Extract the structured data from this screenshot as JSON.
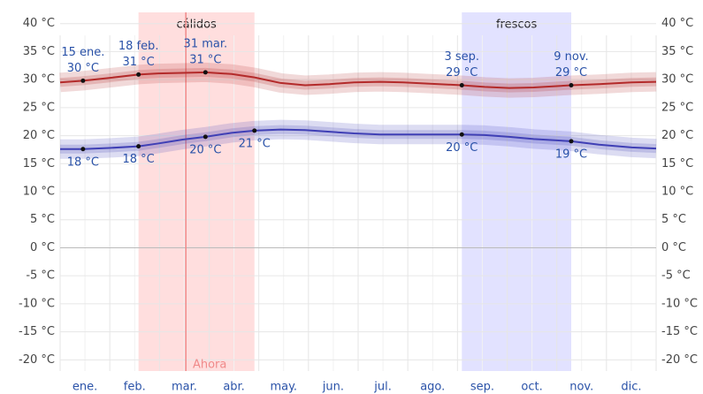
{
  "chart_data": {
    "type": "line",
    "months": [
      "ene.",
      "feb.",
      "mar.",
      "abr.",
      "may.",
      "jun.",
      "jul.",
      "ago.",
      "sep.",
      "oct.",
      "nov.",
      "dic."
    ],
    "xlim": [
      0,
      365
    ],
    "x": [
      0,
      14,
      30,
      48,
      60,
      75,
      89,
      105,
      119,
      135,
      150,
      165,
      180,
      196,
      210,
      225,
      246,
      260,
      275,
      290,
      313,
      330,
      350,
      365
    ],
    "date_labels": [
      null,
      "15 ene.",
      null,
      "18 feb.",
      null,
      null,
      "31 mar.",
      null,
      null,
      null,
      null,
      null,
      null,
      null,
      null,
      null,
      "3 sep.",
      null,
      null,
      null,
      "9 nov.",
      null,
      null,
      null
    ],
    "series": [
      {
        "name": "high",
        "color": "#b32a2a",
        "values": [
          29.5,
          29.8,
          30.3,
          30.9,
          31.1,
          31.2,
          31.3,
          31.0,
          30.4,
          29.4,
          29.0,
          29.2,
          29.5,
          29.6,
          29.5,
          29.3,
          29.0,
          28.7,
          28.5,
          28.6,
          29.0,
          29.2,
          29.5,
          29.6
        ],
        "value_labels": [
          null,
          "30 °C",
          null,
          "31 °C",
          null,
          null,
          "31 °C",
          null,
          null,
          null,
          null,
          null,
          null,
          null,
          null,
          null,
          "29 °C",
          null,
          null,
          null,
          "29 °C",
          null,
          null,
          null
        ]
      },
      {
        "name": "low",
        "color": "#3f3fb5",
        "values": [
          17.6,
          17.6,
          17.8,
          18.1,
          18.6,
          19.3,
          19.8,
          20.5,
          20.9,
          21.1,
          21.0,
          20.7,
          20.4,
          20.2,
          20.2,
          20.2,
          20.2,
          20.1,
          19.8,
          19.4,
          19.0,
          18.4,
          17.9,
          17.7
        ],
        "value_labels": [
          null,
          "18 °C",
          null,
          "18 °C",
          null,
          null,
          "20 °C",
          null,
          "21 °C",
          null,
          null,
          null,
          null,
          null,
          null,
          null,
          "20 °C",
          null,
          null,
          null,
          "19 °C",
          null,
          null,
          null
        ]
      }
    ],
    "bands": [
      {
        "name": "cálidos",
        "start": 48,
        "end": 119,
        "color": "#ffdede"
      },
      {
        "name": "frescos",
        "start": 246,
        "end": 313,
        "color": "#e2e2ff"
      }
    ],
    "now": {
      "label": "Ahora",
      "x": 77
    },
    "ylim": [
      -22,
      42
    ],
    "yticks": [
      {
        "value": 40,
        "label": "40 °C"
      },
      {
        "value": 35,
        "label": "35 °C"
      },
      {
        "value": 30,
        "label": "30 °C"
      },
      {
        "value": 25,
        "label": "25 °C"
      },
      {
        "value": 20,
        "label": "20 °C"
      },
      {
        "value": 15,
        "label": "15 °C"
      },
      {
        "value": 10,
        "label": "10 °C"
      },
      {
        "value": 5,
        "label": "5 °C"
      },
      {
        "value": 0,
        "label": "0 °C"
      },
      {
        "value": -5,
        "label": "-5 °C"
      },
      {
        "value": -10,
        "label": "-10 °C"
      },
      {
        "value": -15,
        "label": "-15 °C"
      },
      {
        "value": -20,
        "label": "-20 °C"
      }
    ],
    "grid": true
  }
}
